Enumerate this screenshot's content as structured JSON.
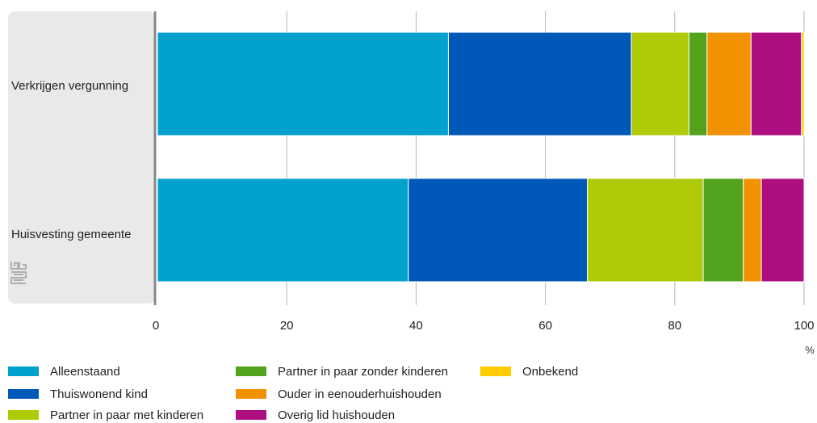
{
  "chart_data": {
    "type": "bar",
    "orientation": "horizontal",
    "stacked": true,
    "categories": [
      "Verkrijgen vergunning",
      "Huisvesting gemeente"
    ],
    "series": [
      {
        "name": "Alleenstaand",
        "color": "#00a1cd",
        "values": [
          45.0,
          38.8
        ]
      },
      {
        "name": "Thuiswonend kind",
        "color": "#0058b8",
        "values": [
          28.3,
          27.7
        ]
      },
      {
        "name": "Partner in paar met kinderen",
        "color": "#afcb05",
        "values": [
          8.9,
          17.9
        ]
      },
      {
        "name": "Partner in paar zonder kinderen",
        "color": "#53a31d",
        "values": [
          2.8,
          6.2
        ]
      },
      {
        "name": "Ouder in eenouderhuishouden",
        "color": "#f39200",
        "values": [
          6.8,
          2.8
        ]
      },
      {
        "name": "Overig lid huishouden",
        "color": "#af0e80",
        "values": [
          7.8,
          6.6
        ]
      },
      {
        "name": "Onbekend",
        "color": "#ffcc00",
        "values": [
          0.4,
          0.0
        ]
      }
    ],
    "xlim": [
      0,
      100
    ],
    "xticks": [
      0,
      20,
      40,
      60,
      80,
      100
    ],
    "xticklabels": [
      "0",
      "20",
      "40",
      "60",
      "80",
      "100"
    ],
    "xunit": "%",
    "grid": true,
    "legend_position": "bottom"
  },
  "colors": {
    "label_panel": "#e9e9e9",
    "axis": "#888888",
    "grid": "#b5b5b5",
    "logo": "#9a9a9a"
  },
  "logo_icon": "cbs-logo-icon"
}
